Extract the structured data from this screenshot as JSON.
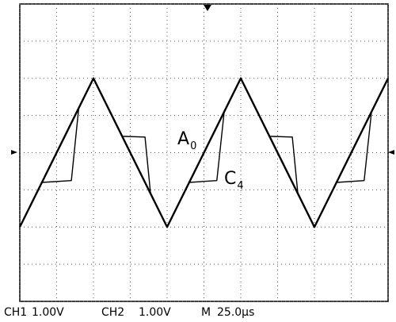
{
  "chart_data": {
    "type": "line",
    "xlim": [
      0,
      10
    ],
    "ylim": [
      -4,
      4
    ],
    "xticks": [
      0,
      1,
      2,
      3,
      4,
      5,
      6,
      7,
      8,
      9,
      10
    ],
    "yticks": [
      -4,
      -3,
      -2,
      -1,
      0,
      1,
      2,
      3,
      4
    ],
    "grid": true,
    "series": [
      {
        "name": "A0",
        "color": "#000000",
        "x": [
          0,
          2,
          4,
          6,
          8,
          10
        ],
        "values": [
          -2,
          2,
          -2,
          2,
          -2,
          2
        ]
      },
      {
        "name": "C4",
        "color": "#000000",
        "x": [
          0,
          0.6,
          1.4,
          1.6,
          2,
          2.78,
          3.4,
          3.55,
          4,
          4.6,
          5.35,
          5.55,
          6,
          6.78,
          7.4,
          7.55,
          8,
          8.6,
          9.35,
          9.55,
          10
        ],
        "values": [
          -2,
          -0.8,
          -0.75,
          1.2,
          2,
          0.44,
          0.42,
          -1.1,
          -2,
          -0.8,
          -0.75,
          1.1,
          2,
          0.44,
          0.42,
          -1.1,
          -2,
          -0.8,
          -0.75,
          1.1,
          2
        ]
      }
    ],
    "annotations": [
      {
        "text": "A",
        "subscript": "0"
      },
      {
        "text": "C",
        "subscript": "4"
      }
    ],
    "status": [
      "CH1",
      "1.00V",
      "CH2",
      "1.00V",
      "M",
      "25.0µs"
    ]
  }
}
